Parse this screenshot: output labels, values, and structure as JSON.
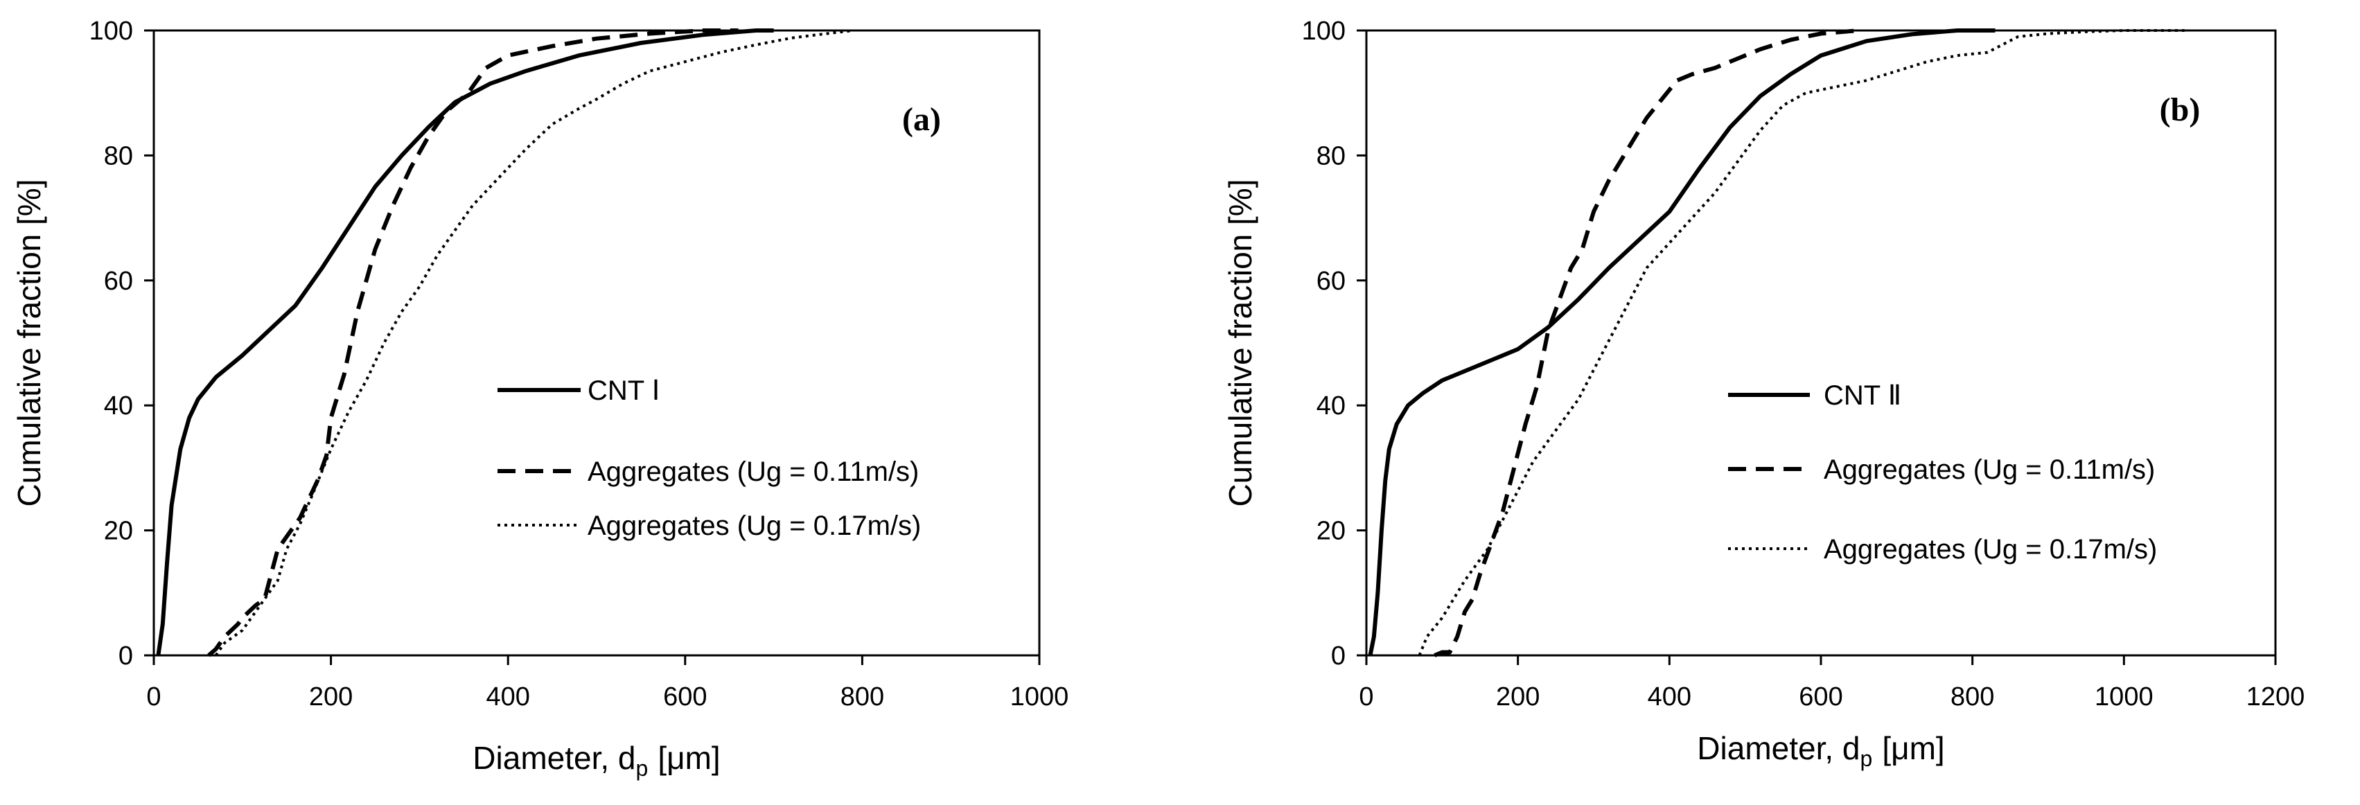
{
  "chart_data": [
    {
      "type": "line",
      "panel_label": "(a)",
      "xlabel": "Diameter, d",
      "xlabel_sub": "p",
      "xlabel_unit": "[μm]",
      "ylabel": "Cumulative fraction [%]",
      "xlim": [
        0,
        1000
      ],
      "ylim": [
        0,
        100
      ],
      "xticks": [
        0,
        200,
        400,
        600,
        800,
        1000
      ],
      "yticks": [
        0,
        20,
        40,
        60,
        80,
        100
      ],
      "legend_position": "center-right",
      "series": [
        {
          "name": "CNT Ⅰ",
          "style": "solid",
          "x": [
            5,
            10,
            15,
            20,
            30,
            40,
            50,
            70,
            100,
            130,
            160,
            190,
            220,
            250,
            280,
            310,
            340,
            380,
            420,
            480,
            550,
            620,
            680,
            700
          ],
          "y": [
            0,
            5,
            15,
            24,
            33,
            38,
            41,
            44.5,
            48,
            52,
            56,
            62,
            68.5,
            75,
            80,
            84.5,
            88.5,
            91.5,
            93.5,
            96,
            98,
            99.3,
            100,
            100
          ]
        },
        {
          "name": "Aggregates (Ug = 0.11m/s)",
          "style": "dashed",
          "x": [
            62,
            70,
            80,
            95,
            100,
            115,
            125,
            140,
            150,
            165,
            175,
            185,
            195,
            200,
            215,
            230,
            250,
            270,
            290,
            310,
            330,
            355,
            375,
            400,
            450,
            500,
            560,
            620,
            660
          ],
          "y": [
            0,
            1,
            3,
            5,
            6,
            8,
            9,
            17,
            19,
            22,
            25,
            28,
            32,
            38,
            45,
            55,
            65,
            72,
            78,
            83,
            87,
            90,
            94,
            96,
            97.5,
            98.7,
            99.5,
            100,
            100
          ]
        },
        {
          "name": "Aggregates (Ug = 0.17m/s)",
          "style": "dotted",
          "x": [
            70,
            80,
            100,
            120,
            140,
            150,
            165,
            180,
            200,
            220,
            240,
            260,
            280,
            300,
            320,
            340,
            360,
            380,
            400,
            420,
            450,
            480,
            500,
            530,
            560,
            600,
            640,
            680,
            720,
            760,
            790
          ],
          "y": [
            0,
            2,
            4,
            8,
            12,
            17,
            21,
            26,
            33,
            39,
            44,
            50,
            55,
            59,
            64,
            68,
            72,
            75,
            78,
            81,
            85,
            87.5,
            89,
            91.5,
            93.5,
            95,
            96.5,
            97.7,
            98.8,
            99.5,
            100
          ]
        }
      ]
    },
    {
      "type": "line",
      "panel_label": "(b)",
      "xlabel": "Diameter, d",
      "xlabel_sub": "p",
      "xlabel_unit": "[μm]",
      "ylabel": "Cumulative fraction [%]",
      "xlim": [
        0,
        1200
      ],
      "ylim": [
        0,
        100
      ],
      "xticks": [
        0,
        200,
        400,
        600,
        800,
        1000,
        1200
      ],
      "yticks": [
        0,
        20,
        40,
        60,
        80,
        100
      ],
      "legend_position": "center-right",
      "series": [
        {
          "name": "CNT Ⅱ",
          "style": "solid",
          "x": [
            5,
            10,
            15,
            20,
            25,
            30,
            40,
            55,
            75,
            100,
            130,
            160,
            200,
            240,
            280,
            320,
            360,
            400,
            440,
            480,
            520,
            560,
            600,
            660,
            720,
            780,
            830
          ],
          "y": [
            0,
            3,
            10,
            20,
            28,
            33,
            37,
            40,
            42,
            44,
            45.5,
            47,
            49,
            52.5,
            57,
            62,
            66.5,
            71,
            78,
            84.5,
            89.5,
            93,
            96,
            98.3,
            99.4,
            100,
            100
          ]
        },
        {
          "name": "Aggregates (Ug = 0.11m/s)",
          "style": "dashed",
          "x": [
            90,
            100,
            110,
            120,
            130,
            140,
            150,
            165,
            180,
            195,
            210,
            225,
            240,
            255,
            270,
            285,
            300,
            320,
            345,
            370,
            390,
            410,
            430,
            460,
            490,
            520,
            560,
            600,
            650
          ],
          "y": [
            0,
            0.5,
            0.5,
            3,
            7,
            9,
            13,
            18,
            23,
            30,
            37,
            43,
            52,
            57,
            62,
            65,
            71,
            76,
            81,
            86,
            89,
            92,
            93,
            94,
            95.5,
            97,
            98.5,
            99.5,
            100
          ]
        },
        {
          "name": "Aggregates (Ug = 0.17m/s)",
          "style": "dotted",
          "x": [
            70,
            80,
            100,
            130,
            160,
            190,
            220,
            250,
            280,
            310,
            340,
            370,
            400,
            430,
            460,
            490,
            520,
            550,
            580,
            620,
            660,
            700,
            740,
            780,
            820,
            860,
            900,
            950,
            1000,
            1050,
            1080
          ],
          "y": [
            0,
            3,
            6,
            12,
            17,
            24,
            31,
            36,
            41,
            48,
            55,
            62,
            66,
            70,
            74,
            79,
            84,
            88,
            90,
            91,
            92,
            93.5,
            95,
            96,
            96.5,
            99,
            99.5,
            99.8,
            100,
            100,
            100
          ]
        }
      ]
    }
  ]
}
